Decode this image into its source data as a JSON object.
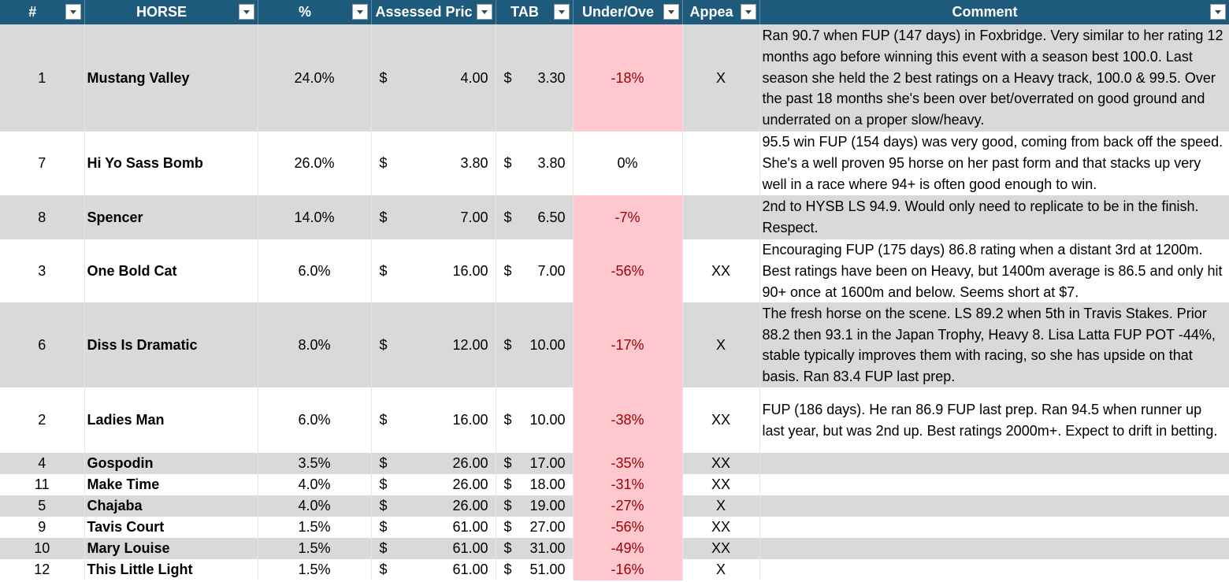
{
  "currency": "$",
  "table": {
    "headers": [
      "#",
      "HORSE",
      "%",
      "Assessed Pric",
      "TAB",
      "Under/Ove",
      "Appea",
      "Comment"
    ],
    "rows": [
      [
        "1",
        "Mustang Valley",
        "24.0%",
        "4.00",
        "3.30",
        "-18%",
        "X",
        "Ran 90.7 when FUP (147 days) in Foxbridge. Very similar to her rating 12 months ago before winning this event with a season best 100.0. Last season she held the 2 best ratings on a Heavy track, 100.0 & 99.5. Over the past 18 months she's been over bet/overrated on good ground and underrated on a proper slow/heavy."
      ],
      [
        "7",
        "Hi Yo Sass Bomb",
        "26.0%",
        "3.80",
        "3.80",
        "0%",
        "",
        "95.5 win FUP (154 days) was very good, coming from back off the speed. She's a well proven 95 horse on her past form and that stacks up very well in a race where 94+ is often good enough to win."
      ],
      [
        "8",
        "Spencer",
        "14.0%",
        "7.00",
        "6.50",
        "-7%",
        "",
        "2nd to HYSB LS 94.9. Would only need to replicate to be in the finish. Respect."
      ],
      [
        "3",
        "One Bold Cat",
        "6.0%",
        "16.00",
        "7.00",
        "-56%",
        "XX",
        "Encouraging FUP (175 days) 86.8 rating when a distant 3rd at 1200m. Best ratings have been on Heavy, but 1400m average is 86.5 and only hit 90+ once at 1600m and below. Seems short at $7."
      ],
      [
        "6",
        "Diss Is Dramatic",
        "8.0%",
        "12.00",
        "10.00",
        "-17%",
        "X",
        "The fresh horse on the scene. LS 89.2 when 5th in Travis Stakes. Prior 88.2 then 93.1 in the Japan Trophy, Heavy 8. Lisa Latta FUP POT -44%, stable typically improves them with racing, so she has upside on that basis. Ran 83.4 FUP last prep."
      ],
      [
        "2",
        "Ladies Man",
        "6.0%",
        "16.00",
        "10.00",
        "-38%",
        "XX",
        "FUP (186 days). He ran 86.9 FUP last prep. Ran 94.5 when runner up last year, but was 2nd up. Best ratings 2000m+. Expect to drift in betting."
      ],
      [
        "4",
        "Gospodin",
        "3.5%",
        "26.00",
        "17.00",
        "-35%",
        "XX",
        ""
      ],
      [
        "11",
        "Make Time",
        "4.0%",
        "26.00",
        "18.00",
        "-31%",
        "XX",
        ""
      ],
      [
        "5",
        "Chajaba",
        "4.0%",
        "26.00",
        "19.00",
        "-27%",
        "X",
        ""
      ],
      [
        "9",
        "Tavis Court",
        "1.5%",
        "61.00",
        "27.00",
        "-56%",
        "XX",
        ""
      ],
      [
        "10",
        "Mary Louise",
        "1.5%",
        "61.00",
        "31.00",
        "-49%",
        "XX",
        ""
      ],
      [
        "12",
        "This Little Light",
        "1.5%",
        "61.00",
        "51.00",
        "-16%",
        "X",
        ""
      ]
    ]
  }
}
